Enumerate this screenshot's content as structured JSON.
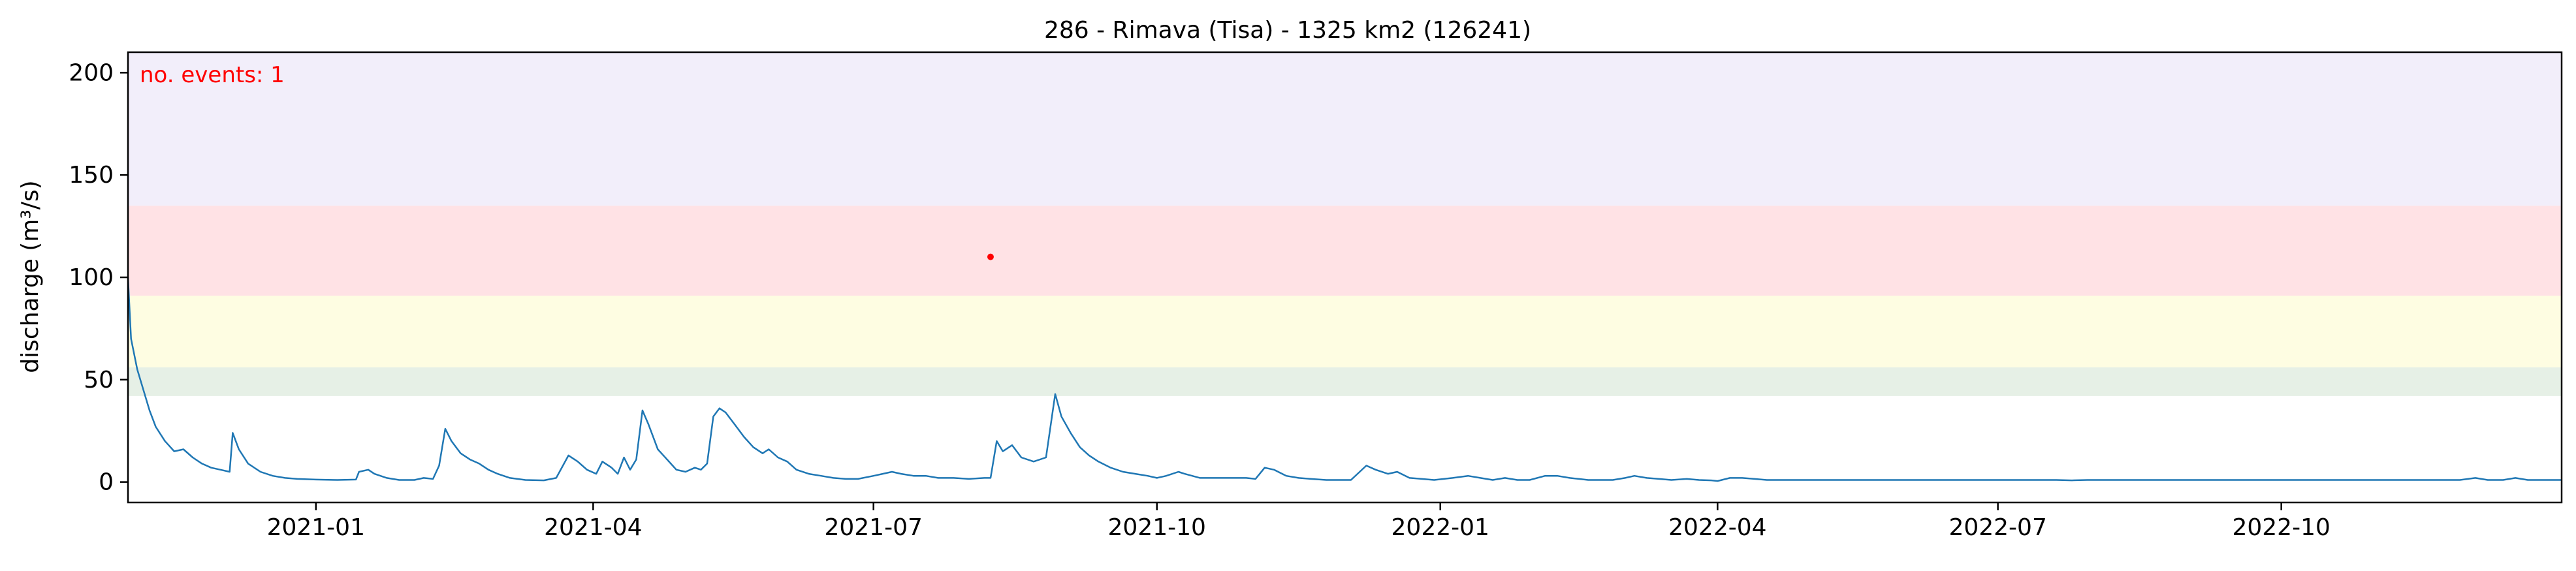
{
  "chart_data": {
    "type": "line",
    "title": "286 - Rimava (Tisa) - 1325 km2 (126241)",
    "xlabel": "",
    "ylabel": "discharge (m³/s)",
    "annotation": "no. events: 1",
    "xlim": [
      "2020-11-01",
      "2022-12-31"
    ],
    "ylim": [
      -10,
      210
    ],
    "yticks": [
      0,
      50,
      100,
      150,
      200
    ],
    "xticks": [
      {
        "date": "2021-01-01",
        "label": "2021-01"
      },
      {
        "date": "2021-04-01",
        "label": "2021-04"
      },
      {
        "date": "2021-07-01",
        "label": "2021-07"
      },
      {
        "date": "2021-10-01",
        "label": "2021-10"
      },
      {
        "date": "2022-01-01",
        "label": "2022-01"
      },
      {
        "date": "2022-04-01",
        "label": "2022-04"
      },
      {
        "date": "2022-07-01",
        "label": "2022-07"
      },
      {
        "date": "2022-10-01",
        "label": "2022-10"
      }
    ],
    "threshold_bands": [
      {
        "from": 42,
        "to": 56,
        "color": "#e6f0e6"
      },
      {
        "from": 56,
        "to": 91,
        "color": "#fefde2"
      },
      {
        "from": 91,
        "to": 135,
        "color": "#ffe2e5"
      },
      {
        "from": 135,
        "to": 210,
        "color": "#f2eefa"
      }
    ],
    "events": [
      {
        "date": "2021-08-08",
        "value": 110
      }
    ],
    "colors": {
      "line": "#1f77b4",
      "event": "#ff0000",
      "annotation": "#ff0000"
    },
    "series": [
      {
        "points": [
          [
            "2020-11-01",
            100
          ],
          [
            "2020-11-02",
            70
          ],
          [
            "2020-11-04",
            55
          ],
          [
            "2020-11-06",
            45
          ],
          [
            "2020-11-08",
            35
          ],
          [
            "2020-11-10",
            27
          ],
          [
            "2020-11-13",
            20
          ],
          [
            "2020-11-16",
            15
          ],
          [
            "2020-11-19",
            16
          ],
          [
            "2020-11-22",
            12
          ],
          [
            "2020-11-25",
            9
          ],
          [
            "2020-11-28",
            7
          ],
          [
            "2020-12-01",
            6
          ],
          [
            "2020-12-04",
            5
          ],
          [
            "2020-12-05",
            24
          ],
          [
            "2020-12-07",
            16
          ],
          [
            "2020-12-10",
            9
          ],
          [
            "2020-12-14",
            5
          ],
          [
            "2020-12-18",
            3
          ],
          [
            "2020-12-22",
            2
          ],
          [
            "2020-12-26",
            1.5
          ],
          [
            "2021-01-01",
            1.2
          ],
          [
            "2021-01-08",
            1
          ],
          [
            "2021-01-14",
            1.2
          ],
          [
            "2021-01-15",
            5
          ],
          [
            "2021-01-18",
            6
          ],
          [
            "2021-01-20",
            4
          ],
          [
            "2021-01-24",
            2
          ],
          [
            "2021-01-28",
            1
          ],
          [
            "2021-02-02",
            1
          ],
          [
            "2021-02-05",
            2
          ],
          [
            "2021-02-08",
            1.5
          ],
          [
            "2021-02-10",
            8
          ],
          [
            "2021-02-12",
            26
          ],
          [
            "2021-02-14",
            20
          ],
          [
            "2021-02-17",
            14
          ],
          [
            "2021-02-20",
            11
          ],
          [
            "2021-02-23",
            9
          ],
          [
            "2021-02-26",
            6
          ],
          [
            "2021-03-01",
            4
          ],
          [
            "2021-03-05",
            2
          ],
          [
            "2021-03-10",
            1
          ],
          [
            "2021-03-16",
            0.8
          ],
          [
            "2021-03-20",
            2
          ],
          [
            "2021-03-24",
            13
          ],
          [
            "2021-03-27",
            10
          ],
          [
            "2021-03-30",
            6
          ],
          [
            "2021-04-02",
            4
          ],
          [
            "2021-04-04",
            10
          ],
          [
            "2021-04-07",
            7
          ],
          [
            "2021-04-09",
            4
          ],
          [
            "2021-04-11",
            12
          ],
          [
            "2021-04-13",
            6
          ],
          [
            "2021-04-15",
            11
          ],
          [
            "2021-04-17",
            35
          ],
          [
            "2021-04-19",
            28
          ],
          [
            "2021-04-22",
            16
          ],
          [
            "2021-04-25",
            11
          ],
          [
            "2021-04-28",
            6
          ],
          [
            "2021-05-01",
            5
          ],
          [
            "2021-05-04",
            7
          ],
          [
            "2021-05-06",
            6
          ],
          [
            "2021-05-08",
            9
          ],
          [
            "2021-05-10",
            32
          ],
          [
            "2021-05-12",
            36
          ],
          [
            "2021-05-14",
            34
          ],
          [
            "2021-05-17",
            28
          ],
          [
            "2021-05-20",
            22
          ],
          [
            "2021-05-23",
            17
          ],
          [
            "2021-05-26",
            14
          ],
          [
            "2021-05-28",
            16
          ],
          [
            "2021-05-31",
            12
          ],
          [
            "2021-06-03",
            10
          ],
          [
            "2021-06-06",
            6
          ],
          [
            "2021-06-10",
            4
          ],
          [
            "2021-06-14",
            3
          ],
          [
            "2021-06-18",
            2
          ],
          [
            "2021-06-22",
            1.5
          ],
          [
            "2021-06-26",
            1.5
          ],
          [
            "2021-07-01",
            3
          ],
          [
            "2021-07-04",
            4
          ],
          [
            "2021-07-07",
            5
          ],
          [
            "2021-07-10",
            4
          ],
          [
            "2021-07-14",
            3
          ],
          [
            "2021-07-18",
            3
          ],
          [
            "2021-07-22",
            2
          ],
          [
            "2021-07-27",
            2
          ],
          [
            "2021-08-01",
            1.5
          ],
          [
            "2021-08-06",
            2
          ],
          [
            "2021-08-08",
            2
          ],
          [
            "2021-08-10",
            20
          ],
          [
            "2021-08-12",
            15
          ],
          [
            "2021-08-15",
            18
          ],
          [
            "2021-08-18",
            12
          ],
          [
            "2021-08-22",
            10
          ],
          [
            "2021-08-26",
            12
          ],
          [
            "2021-08-29",
            43
          ],
          [
            "2021-08-31",
            32
          ],
          [
            "2021-09-03",
            24
          ],
          [
            "2021-09-06",
            17
          ],
          [
            "2021-09-09",
            13
          ],
          [
            "2021-09-12",
            10
          ],
          [
            "2021-09-16",
            7
          ],
          [
            "2021-09-20",
            5
          ],
          [
            "2021-09-24",
            4
          ],
          [
            "2021-09-28",
            3
          ],
          [
            "2021-10-01",
            2
          ],
          [
            "2021-10-04",
            3
          ],
          [
            "2021-10-08",
            5
          ],
          [
            "2021-10-10",
            4
          ],
          [
            "2021-10-15",
            2
          ],
          [
            "2021-10-20",
            2
          ],
          [
            "2021-10-25",
            2
          ],
          [
            "2021-10-30",
            2
          ],
          [
            "2021-11-02",
            1.5
          ],
          [
            "2021-11-05",
            7
          ],
          [
            "2021-11-08",
            6
          ],
          [
            "2021-11-12",
            3
          ],
          [
            "2021-11-16",
            2
          ],
          [
            "2021-11-20",
            1.5
          ],
          [
            "2021-11-25",
            1
          ],
          [
            "2021-11-30",
            1
          ],
          [
            "2021-12-03",
            1
          ],
          [
            "2021-12-08",
            8
          ],
          [
            "2021-12-11",
            6
          ],
          [
            "2021-12-15",
            4
          ],
          [
            "2021-12-18",
            5
          ],
          [
            "2021-12-22",
            2
          ],
          [
            "2021-12-26",
            1.5
          ],
          [
            "2021-12-30",
            1
          ],
          [
            "2022-01-05",
            2
          ],
          [
            "2022-01-10",
            3
          ],
          [
            "2022-01-14",
            2
          ],
          [
            "2022-01-18",
            1
          ],
          [
            "2022-01-22",
            2
          ],
          [
            "2022-01-26",
            1
          ],
          [
            "2022-01-30",
            1
          ],
          [
            "2022-02-04",
            3
          ],
          [
            "2022-02-08",
            3
          ],
          [
            "2022-02-12",
            2
          ],
          [
            "2022-02-15",
            1.5
          ],
          [
            "2022-02-18",
            1
          ],
          [
            "2022-02-22",
            1
          ],
          [
            "2022-02-26",
            1
          ],
          [
            "2022-03-02",
            2
          ],
          [
            "2022-03-05",
            3
          ],
          [
            "2022-03-09",
            2
          ],
          [
            "2022-03-13",
            1.5
          ],
          [
            "2022-03-17",
            1
          ],
          [
            "2022-03-22",
            1.5
          ],
          [
            "2022-03-26",
            1
          ],
          [
            "2022-03-30",
            0.8
          ],
          [
            "2022-04-01",
            0.5
          ],
          [
            "2022-04-05",
            2
          ],
          [
            "2022-04-09",
            2
          ],
          [
            "2022-04-13",
            1.5
          ],
          [
            "2022-04-17",
            1
          ],
          [
            "2022-04-22",
            1
          ],
          [
            "2022-04-26",
            1
          ],
          [
            "2022-04-30",
            1
          ],
          [
            "2022-05-03",
            1
          ],
          [
            "2022-05-07",
            1
          ],
          [
            "2022-05-12",
            1
          ],
          [
            "2022-05-16",
            1
          ],
          [
            "2022-05-20",
            1
          ],
          [
            "2022-05-25",
            1
          ],
          [
            "2022-05-30",
            1
          ],
          [
            "2022-06-05",
            1
          ],
          [
            "2022-06-10",
            1
          ],
          [
            "2022-06-15",
            1
          ],
          [
            "2022-06-20",
            1
          ],
          [
            "2022-06-25",
            1
          ],
          [
            "2022-06-30",
            1
          ],
          [
            "2022-07-05",
            1
          ],
          [
            "2022-07-10",
            1
          ],
          [
            "2022-07-15",
            1
          ],
          [
            "2022-07-20",
            1
          ],
          [
            "2022-07-25",
            0.8
          ],
          [
            "2022-07-30",
            1
          ],
          [
            "2022-08-04",
            1
          ],
          [
            "2022-08-09",
            1
          ],
          [
            "2022-08-14",
            1
          ],
          [
            "2022-08-19",
            1
          ],
          [
            "2022-08-24",
            1
          ],
          [
            "2022-08-28",
            1
          ],
          [
            "2022-09-01",
            1
          ],
          [
            "2022-09-06",
            1
          ],
          [
            "2022-09-11",
            1
          ],
          [
            "2022-09-16",
            1
          ],
          [
            "2022-09-21",
            1
          ],
          [
            "2022-09-26",
            1
          ],
          [
            "2022-10-01",
            1
          ],
          [
            "2022-10-06",
            1
          ],
          [
            "2022-10-11",
            1
          ],
          [
            "2022-10-16",
            1
          ],
          [
            "2022-10-21",
            1
          ],
          [
            "2022-10-26",
            1
          ],
          [
            "2022-10-30",
            1
          ],
          [
            "2022-11-03",
            1
          ],
          [
            "2022-11-08",
            1
          ],
          [
            "2022-11-13",
            1
          ],
          [
            "2022-11-18",
            1
          ],
          [
            "2022-11-23",
            1
          ],
          [
            "2022-11-28",
            1
          ],
          [
            "2022-12-03",
            2
          ],
          [
            "2022-12-07",
            1
          ],
          [
            "2022-12-12",
            1
          ],
          [
            "2022-12-16",
            2
          ],
          [
            "2022-12-20",
            1
          ],
          [
            "2022-12-24",
            1
          ],
          [
            "2022-12-28",
            1
          ],
          [
            "2022-12-31",
            1
          ]
        ]
      }
    ]
  }
}
